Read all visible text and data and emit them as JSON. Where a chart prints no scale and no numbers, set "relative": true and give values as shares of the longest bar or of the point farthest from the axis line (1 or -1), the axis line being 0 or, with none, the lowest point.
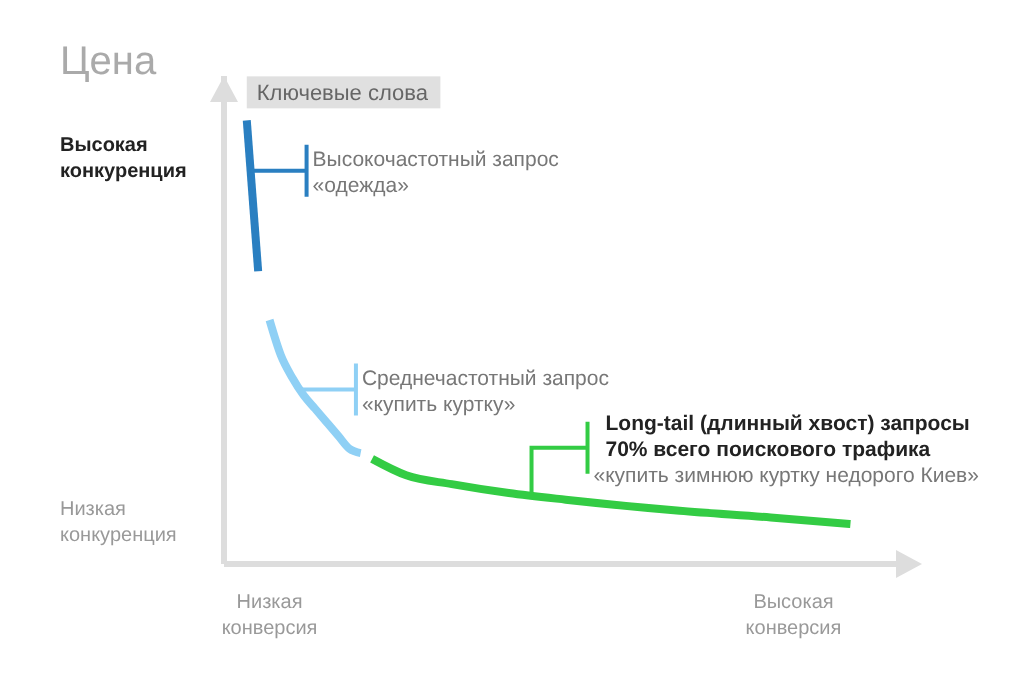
{
  "chart_data": {
    "type": "line",
    "ylabel": "Цена",
    "relative": true,
    "categories": [
      null,
      null,
      null,
      null,
      "Низкая конверсия",
      null,
      null,
      null,
      null,
      null,
      null,
      null,
      null,
      null,
      null,
      null,
      null,
      null,
      null,
      null,
      null,
      null,
      null,
      null,
      null,
      null,
      null,
      null,
      null,
      null,
      null,
      null,
      null,
      null,
      null,
      null,
      null,
      null,
      null,
      null,
      null,
      null,
      null,
      null,
      null,
      null,
      null,
      null,
      null,
      null,
      "Высокая конверсия",
      null,
      null,
      null,
      null,
      null,
      null,
      null,
      null,
      null
    ],
    "grid": false,
    "legend": false,
    "marker": "none",
    "line_style": "solid",
    "series": [
      {
        "color": "#2a7fc1",
        "values": [
          null,
          null,
          1.0,
          0.66,
          null,
          null,
          null,
          null,
          null,
          null,
          null,
          null,
          null,
          null,
          null,
          null,
          null,
          null,
          null,
          null,
          null,
          null,
          null,
          null,
          null,
          null,
          null,
          null,
          null,
          null,
          null,
          null,
          null,
          null,
          null,
          null,
          null,
          null,
          null,
          null,
          null,
          null,
          null,
          null,
          null,
          null,
          null,
          null,
          null,
          null,
          null,
          null,
          null,
          null,
          null,
          null,
          null,
          null,
          null,
          null
        ]
      },
      {
        "color": "#8fd0f5",
        "values": [
          null,
          null,
          null,
          null,
          0.55,
          0.47,
          0.42,
          0.38,
          0.35,
          0.32,
          0.29,
          0.26,
          0.25,
          null,
          null,
          null,
          null,
          null,
          null,
          null,
          null,
          null,
          null,
          null,
          null,
          null,
          null,
          null,
          null,
          null,
          null,
          null,
          null,
          null,
          null,
          null,
          null,
          null,
          null,
          null,
          null,
          null,
          null,
          null,
          null,
          null,
          null,
          null,
          null,
          null,
          null,
          null,
          null,
          null,
          null,
          null,
          null,
          null,
          null,
          null
        ]
      },
      {
        "color": "#33cc44",
        "values": [
          null,
          null,
          null,
          null,
          null,
          null,
          null,
          null,
          null,
          null,
          null,
          null,
          null,
          0.237,
          null,
          null,
          0.2,
          null,
          null,
          null,
          0.18,
          null,
          null,
          null,
          null,
          0.16,
          null,
          null,
          null,
          null,
          0.145,
          null,
          null,
          null,
          null,
          null,
          null,
          null,
          null,
          null,
          0.12,
          null,
          null,
          null,
          null,
          null,
          null,
          null,
          0.105,
          null,
          null,
          null,
          null,
          null,
          null,
          0.09,
          null,
          null,
          null,
          null
        ]
      }
    ],
    "annotations": [
      "Ключевые слова",
      "Высокая конкуренция",
      "Низкая конкуренция",
      "Высокочастотный запрос\n«одежда»",
      "Среднечастотный запрос\n«купить куртку»",
      "Long-tail (длинный хвост) запросы\n70% всего поискового трафика\n«купить зимнюю куртку недорого Киев»"
    ]
  }
}
